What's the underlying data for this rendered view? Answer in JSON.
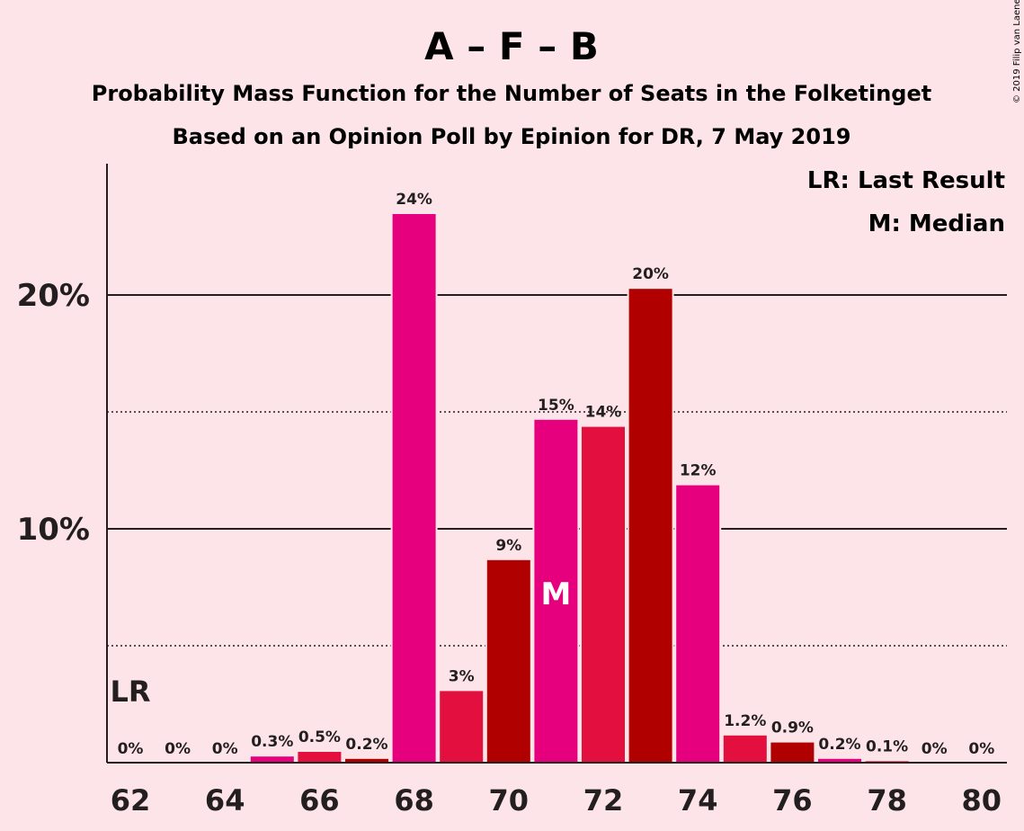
{
  "title": "A – F – B",
  "subtitle1": "Probability Mass Function for the Number of Seats in the Folketinget",
  "subtitle2": "Based on an Opinion Poll by Epinion for DR, 7 May 2019",
  "legend": {
    "lr": "LR: Last Result",
    "m": "M: Median"
  },
  "copyright": "© 2019 Filip van Laenen",
  "colors": {
    "background": "#fde4e8",
    "magenta": "#e6007e",
    "crimson": "#e3103f",
    "darkred": "#b00000",
    "text": "#231f20"
  },
  "chart_data": {
    "type": "bar",
    "x": [
      62,
      63,
      64,
      65,
      66,
      67,
      68,
      69,
      70,
      71,
      72,
      73,
      74,
      75,
      76,
      77,
      78,
      79,
      80
    ],
    "values": [
      0,
      0,
      0,
      0.3,
      0.5,
      0.2,
      23.5,
      3.1,
      8.7,
      14.7,
      14.4,
      20.3,
      11.9,
      1.2,
      0.9,
      0.2,
      0.1,
      0,
      0
    ],
    "labels": [
      "0%",
      "0%",
      "0%",
      "0.3%",
      "0.5%",
      "0.2%",
      "24%",
      "3%",
      "9%",
      "15%",
      "14%",
      "20%",
      "12%",
      "1.2%",
      "0.9%",
      "0.2%",
      "0.1%",
      "0%",
      "0%"
    ],
    "bar_colors": [
      "magenta",
      "crimson",
      "darkred",
      "magenta",
      "crimson",
      "darkred",
      "magenta",
      "crimson",
      "darkred",
      "magenta",
      "crimson",
      "darkred",
      "magenta",
      "crimson",
      "darkred",
      "magenta",
      "crimson",
      "darkred",
      "magenta"
    ],
    "xticks": [
      "62",
      "64",
      "66",
      "68",
      "70",
      "72",
      "74",
      "76",
      "78",
      "80"
    ],
    "yticks": [
      "10%",
      "20%"
    ],
    "ylim": [
      0,
      25
    ],
    "solid_gridlines": [
      10,
      20
    ],
    "dotted_gridlines": [
      5,
      15
    ],
    "last_result": {
      "x": 62,
      "label": "LR"
    },
    "median": {
      "x": 71,
      "label": "M"
    }
  }
}
